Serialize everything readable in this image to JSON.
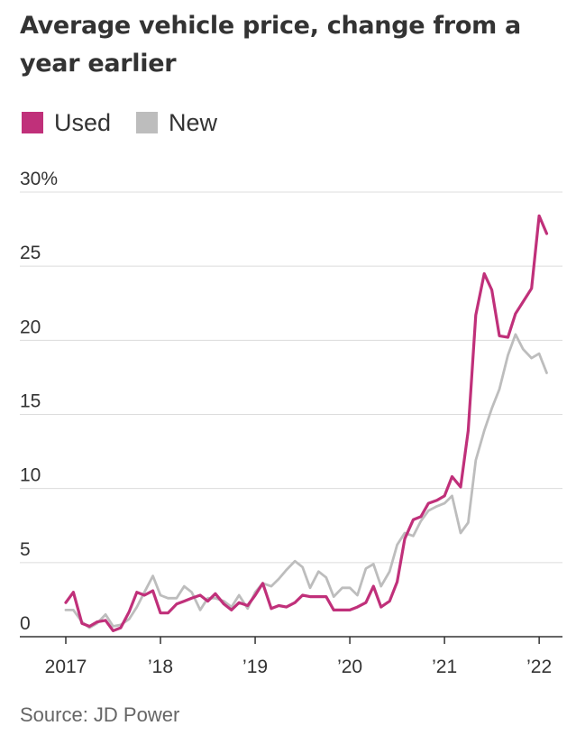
{
  "title": "Average vehicle price, change from a year earlier",
  "legend": [
    {
      "name": "Used",
      "color": "#c0307a"
    },
    {
      "name": "New",
      "color": "#bdbdbd"
    }
  ],
  "source": "Source: JD Power",
  "chart_data": {
    "type": "line",
    "title": "Average vehicle price, change from a year earlier",
    "xlabel": "",
    "ylabel": "",
    "ylim": [
      0,
      30
    ],
    "xlim": [
      2017.0,
      2022.17
    ],
    "grid": true,
    "legend_position": "top-left",
    "y_ticks": [
      {
        "value": 30,
        "label": "30%"
      },
      {
        "value": 25,
        "label": "25"
      },
      {
        "value": 20,
        "label": "20"
      },
      {
        "value": 15,
        "label": "15"
      },
      {
        "value": 10,
        "label": "10"
      },
      {
        "value": 5,
        "label": "5"
      },
      {
        "value": 0,
        "label": "0"
      }
    ],
    "x_ticks": [
      {
        "value": 2017,
        "label": "2017"
      },
      {
        "value": 2018,
        "label": "’18"
      },
      {
        "value": 2019,
        "label": "’19"
      },
      {
        "value": 2020,
        "label": "’20"
      },
      {
        "value": 2021,
        "label": "’21"
      },
      {
        "value": 2022,
        "label": "’22"
      }
    ],
    "series": [
      {
        "name": "Used",
        "color": "#c0307a",
        "points": [
          [
            2017.0,
            2.3
          ],
          [
            2017.08,
            3.0
          ],
          [
            2017.17,
            0.9
          ],
          [
            2017.25,
            0.7
          ],
          [
            2017.33,
            1.0
          ],
          [
            2017.42,
            1.1
          ],
          [
            2017.5,
            0.4
          ],
          [
            2017.58,
            0.6
          ],
          [
            2017.67,
            1.7
          ],
          [
            2017.75,
            3.0
          ],
          [
            2017.83,
            2.8
          ],
          [
            2017.92,
            3.1
          ],
          [
            2018.0,
            1.6
          ],
          [
            2018.08,
            1.6
          ],
          [
            2018.17,
            2.2
          ],
          [
            2018.25,
            2.4
          ],
          [
            2018.33,
            2.6
          ],
          [
            2018.42,
            2.8
          ],
          [
            2018.5,
            2.4
          ],
          [
            2018.58,
            2.9
          ],
          [
            2018.67,
            2.2
          ],
          [
            2018.75,
            1.8
          ],
          [
            2018.83,
            2.3
          ],
          [
            2018.92,
            2.1
          ],
          [
            2019.0,
            2.8
          ],
          [
            2019.08,
            3.6
          ],
          [
            2019.17,
            1.9
          ],
          [
            2019.25,
            2.1
          ],
          [
            2019.33,
            2.0
          ],
          [
            2019.42,
            2.3
          ],
          [
            2019.5,
            2.8
          ],
          [
            2019.58,
            2.7
          ],
          [
            2019.67,
            2.7
          ],
          [
            2019.75,
            2.7
          ],
          [
            2019.83,
            1.8
          ],
          [
            2019.92,
            1.8
          ],
          [
            2020.0,
            1.8
          ],
          [
            2020.08,
            2.0
          ],
          [
            2020.17,
            2.3
          ],
          [
            2020.25,
            3.4
          ],
          [
            2020.33,
            2.0
          ],
          [
            2020.42,
            2.4
          ],
          [
            2020.5,
            3.7
          ],
          [
            2020.58,
            6.6
          ],
          [
            2020.67,
            7.9
          ],
          [
            2020.75,
            8.1
          ],
          [
            2020.83,
            9.0
          ],
          [
            2020.92,
            9.2
          ],
          [
            2021.0,
            9.5
          ],
          [
            2021.08,
            10.8
          ],
          [
            2021.17,
            10.1
          ],
          [
            2021.25,
            13.9
          ],
          [
            2021.33,
            21.7
          ],
          [
            2021.42,
            24.5
          ],
          [
            2021.5,
            23.4
          ],
          [
            2021.58,
            20.3
          ],
          [
            2021.67,
            20.2
          ],
          [
            2021.75,
            21.8
          ],
          [
            2021.83,
            22.6
          ],
          [
            2021.92,
            23.5
          ],
          [
            2022.0,
            28.4
          ],
          [
            2022.08,
            27.2
          ]
        ]
      },
      {
        "name": "New",
        "color": "#bdbdbd",
        "points": [
          [
            2017.0,
            1.8
          ],
          [
            2017.08,
            1.8
          ],
          [
            2017.17,
            1.0
          ],
          [
            2017.25,
            0.6
          ],
          [
            2017.33,
            0.9
          ],
          [
            2017.42,
            1.5
          ],
          [
            2017.5,
            0.7
          ],
          [
            2017.58,
            0.8
          ],
          [
            2017.67,
            1.2
          ],
          [
            2017.75,
            2.0
          ],
          [
            2017.83,
            3.0
          ],
          [
            2017.92,
            4.1
          ],
          [
            2018.0,
            2.8
          ],
          [
            2018.08,
            2.6
          ],
          [
            2018.17,
            2.6
          ],
          [
            2018.25,
            3.4
          ],
          [
            2018.33,
            3.0
          ],
          [
            2018.42,
            1.8
          ],
          [
            2018.5,
            2.6
          ],
          [
            2018.58,
            2.6
          ],
          [
            2018.67,
            2.4
          ],
          [
            2018.75,
            2.0
          ],
          [
            2018.83,
            2.8
          ],
          [
            2018.92,
            1.9
          ],
          [
            2019.0,
            3.0
          ],
          [
            2019.08,
            3.6
          ],
          [
            2019.17,
            3.4
          ],
          [
            2019.25,
            3.9
          ],
          [
            2019.33,
            4.5
          ],
          [
            2019.42,
            5.1
          ],
          [
            2019.5,
            4.7
          ],
          [
            2019.58,
            3.3
          ],
          [
            2019.67,
            4.4
          ],
          [
            2019.75,
            4.0
          ],
          [
            2019.83,
            2.7
          ],
          [
            2019.92,
            3.3
          ],
          [
            2020.0,
            3.3
          ],
          [
            2020.08,
            2.8
          ],
          [
            2020.17,
            4.6
          ],
          [
            2020.25,
            4.9
          ],
          [
            2020.33,
            3.4
          ],
          [
            2020.42,
            4.4
          ],
          [
            2020.5,
            6.2
          ],
          [
            2020.58,
            7.0
          ],
          [
            2020.67,
            6.8
          ],
          [
            2020.75,
            7.8
          ],
          [
            2020.83,
            8.5
          ],
          [
            2020.92,
            8.8
          ],
          [
            2021.0,
            9.0
          ],
          [
            2021.08,
            9.5
          ],
          [
            2021.17,
            7.0
          ],
          [
            2021.25,
            7.7
          ],
          [
            2021.33,
            11.9
          ],
          [
            2021.42,
            13.9
          ],
          [
            2021.5,
            15.4
          ],
          [
            2021.58,
            16.7
          ],
          [
            2021.67,
            19.0
          ],
          [
            2021.75,
            20.4
          ],
          [
            2021.83,
            19.4
          ],
          [
            2021.92,
            18.8
          ],
          [
            2022.0,
            19.1
          ],
          [
            2022.08,
            17.8
          ]
        ]
      }
    ]
  }
}
